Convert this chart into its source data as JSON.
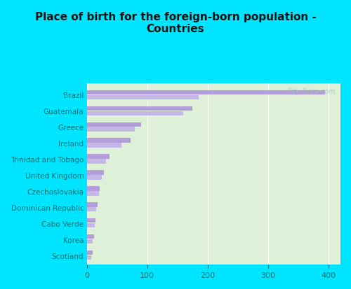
{
  "title": "Place of birth for the foreign-born population -\nCountries",
  "categories": [
    "Brazil",
    "Guatemala",
    "Greece",
    "Ireland",
    "Trinidad and Tobago",
    "United Kingdom",
    "Czechoslovakia",
    "Dominican Republic",
    "Cabo Verde",
    "Korea",
    "Scotland"
  ],
  "values1": [
    395,
    175,
    90,
    72,
    38,
    28,
    22,
    18,
    15,
    12,
    10
  ],
  "values2": [
    185,
    160,
    80,
    58,
    32,
    25,
    20,
    16,
    13,
    10,
    8
  ],
  "bar_color": "#b39ddb",
  "bar_color2": "#c5b8e8",
  "background_outer": "#00e5ff",
  "background_inner": "#dff0d8",
  "title_color": "#111111",
  "label_color": "#007070",
  "tick_color": "#007070",
  "xlim": [
    0,
    420
  ],
  "xticks": [
    0,
    100,
    200,
    300,
    400
  ],
  "watermark": "City-Data.com",
  "bar_height": 0.28,
  "title_fontsize": 11,
  "label_fontsize": 7.5
}
